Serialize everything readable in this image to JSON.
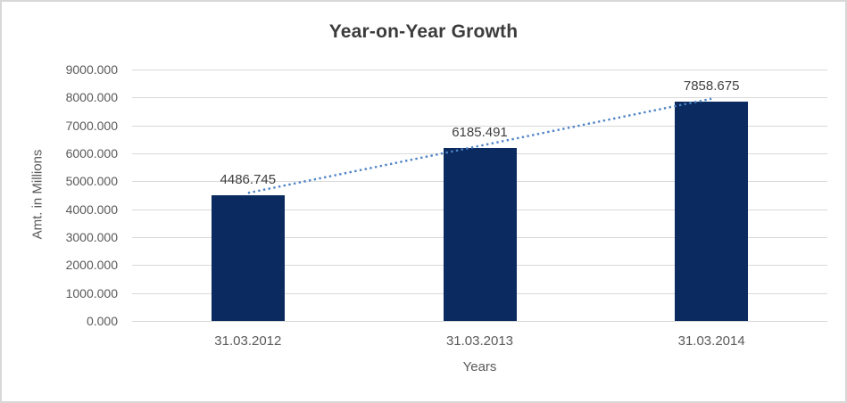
{
  "chart_data": {
    "type": "bar",
    "title": "Year-on-Year Growth",
    "xlabel": "Years",
    "ylabel": "Amt. in Millions",
    "categories": [
      "31.03.2012",
      "31.03.2013",
      "31.03.2014"
    ],
    "values": [
      4486.745,
      6185.491,
      7858.675
    ],
    "data_labels": [
      "4486.745",
      "6185.491",
      "7858.675"
    ],
    "ylim": [
      0,
      9000
    ],
    "ytick_values": [
      0,
      1000,
      2000,
      3000,
      4000,
      5000,
      6000,
      7000,
      8000,
      9000
    ],
    "ytick_labels": [
      "0.000",
      "1000.000",
      "2000.000",
      "3000.000",
      "4000.000",
      "5000.000",
      "6000.000",
      "7000.000",
      "8000.000",
      "9000.000"
    ],
    "grid": true,
    "legend": "none",
    "trendline": {
      "style": "dotted",
      "spans": "first-to-last-category",
      "start_value": 4486.745,
      "end_value": 7858.675
    },
    "colors": {
      "bar": "#0A2A60",
      "trendline": "#4F84C6",
      "gridline": "#D9D9D9",
      "title_text": "#3B3B3B",
      "axis_text": "#595959",
      "data_label_text": "#404040",
      "background": "#FFFFFF",
      "frame_border": "#D8D8D8"
    }
  }
}
